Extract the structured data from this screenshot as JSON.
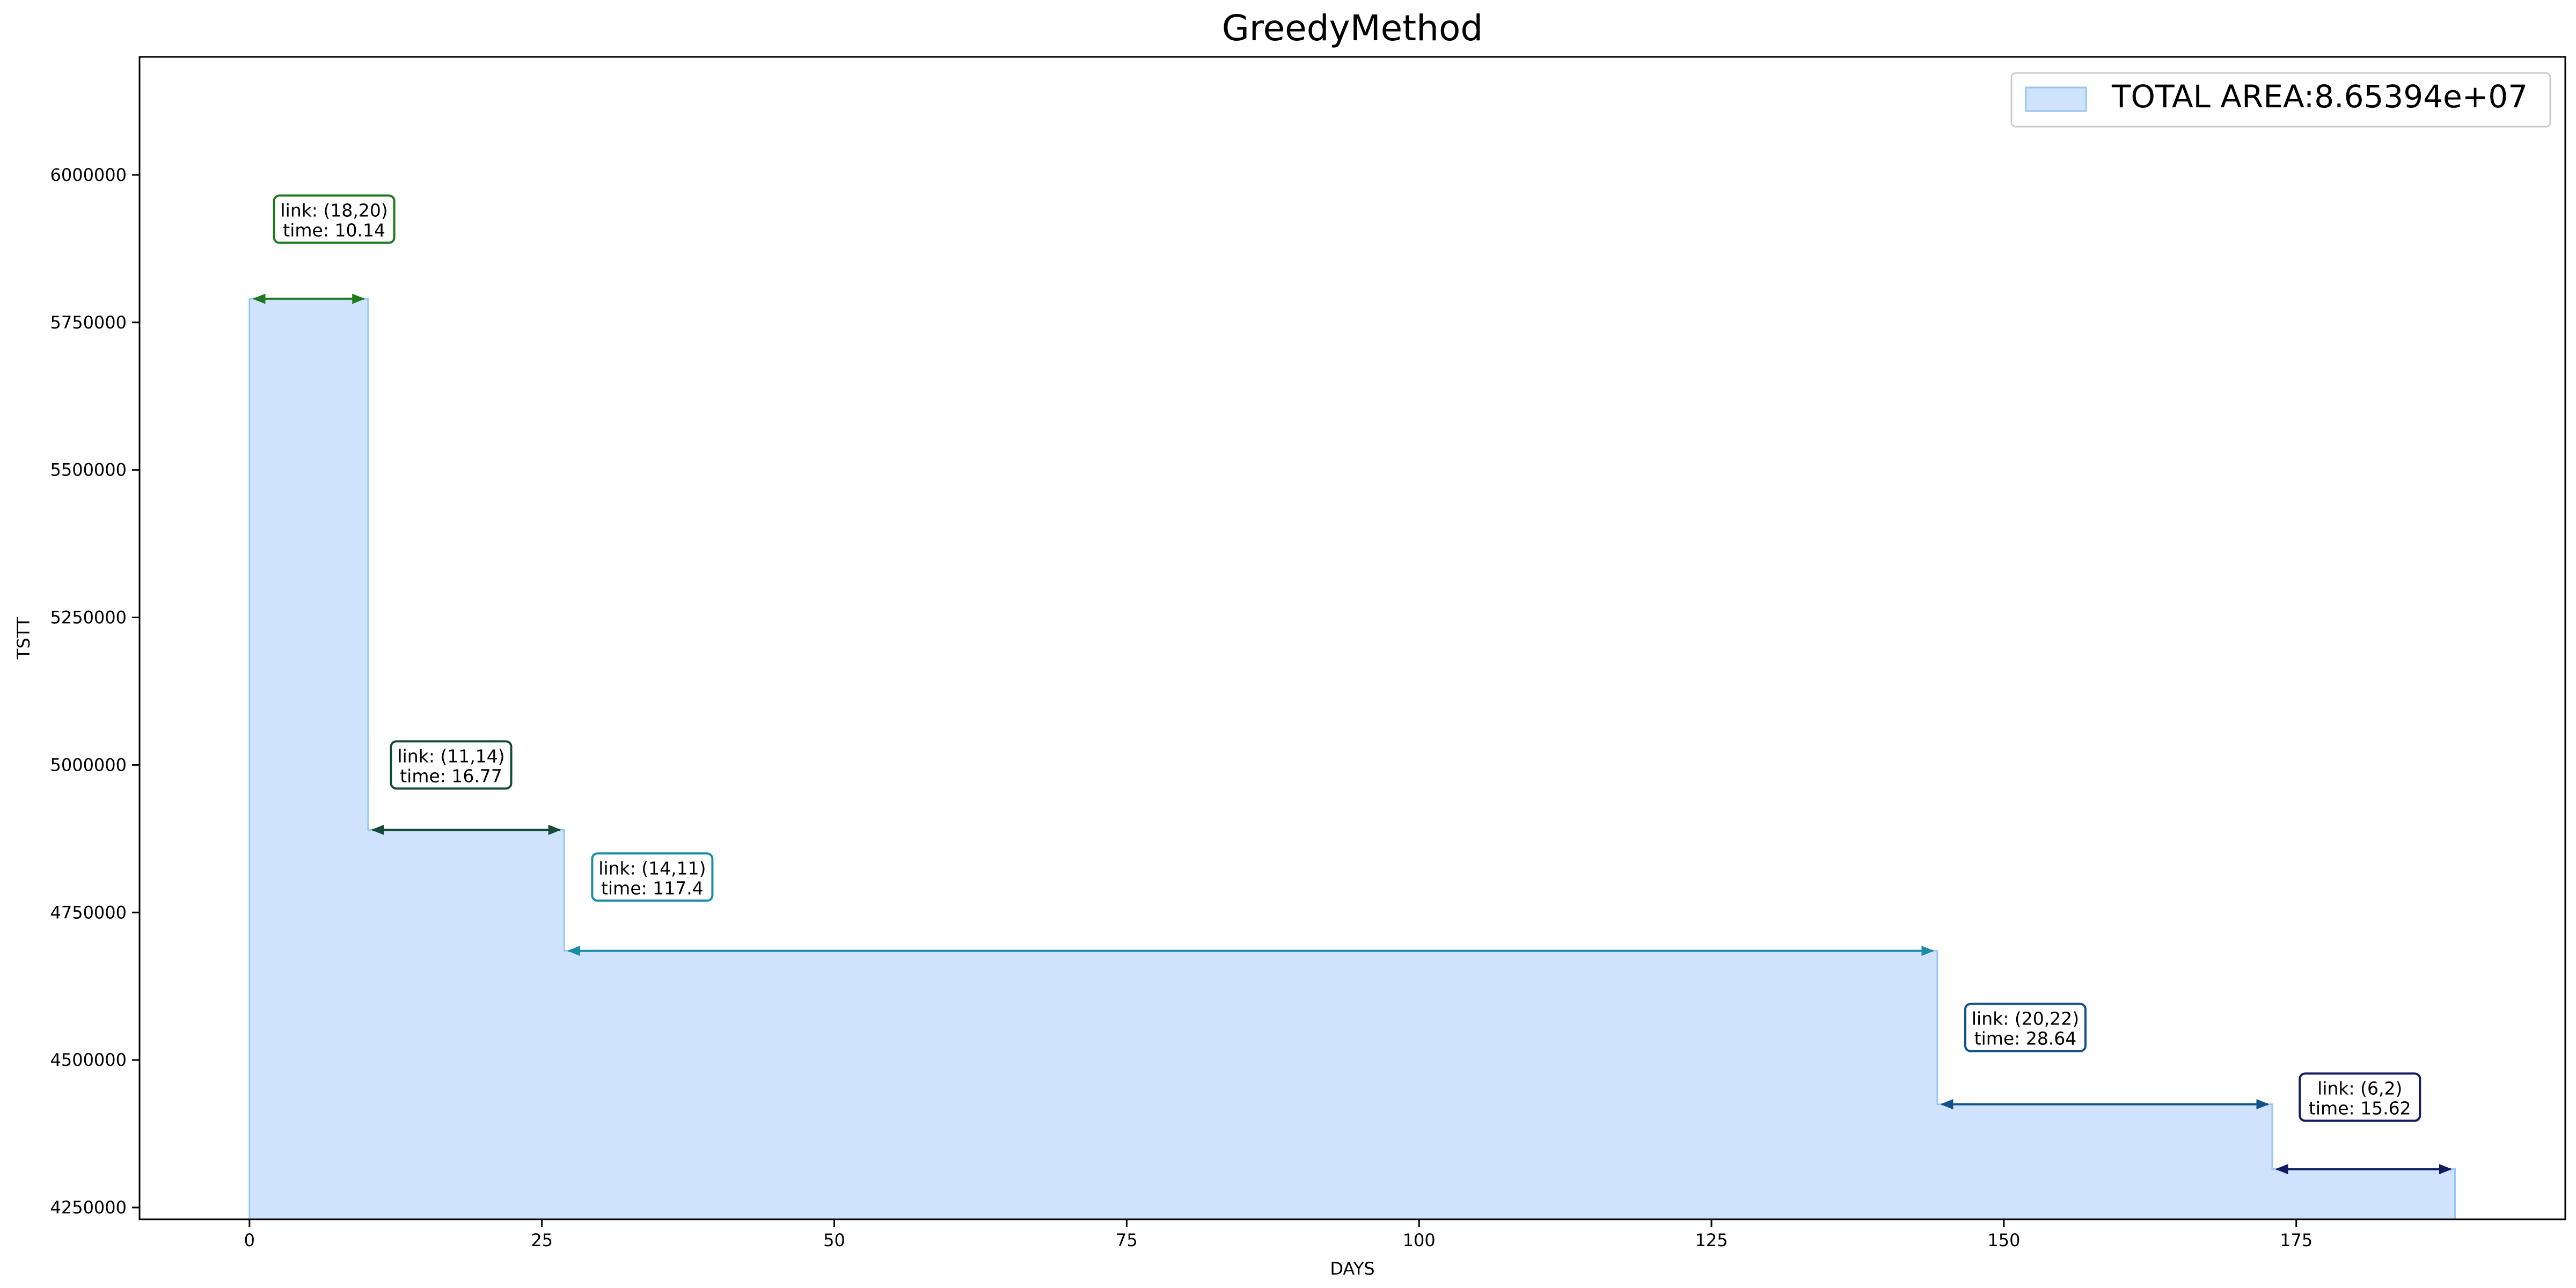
{
  "chart_data": {
    "type": "area",
    "title": "GreedyMethod",
    "xlabel": "DAYS",
    "ylabel": "TSTT",
    "xlim": [
      -9.4,
      198.0
    ],
    "ylim": [
      4230000,
      6200000
    ],
    "x_ticks": [
      0,
      25,
      50,
      75,
      100,
      125,
      150,
      175
    ],
    "y_ticks": [
      4250000,
      4500000,
      4750000,
      5000000,
      5250000,
      5500000,
      5750000,
      6000000
    ],
    "grid": false,
    "legend": {
      "position": "top-right",
      "label": "TOTAL AREA:8.65394e+07"
    },
    "fill_color": "#cfe3fd",
    "edge_color": "#9ac6ee",
    "steps": [
      {
        "x_start": 0.0,
        "x_end": 10.14,
        "y": 5790000,
        "link": "link: (18,20)",
        "time": "time: 10.14",
        "color": "#1f7a1f"
      },
      {
        "x_start": 10.14,
        "x_end": 26.91,
        "y": 4890000,
        "link": "link: (11,14)",
        "time": "time: 16.77",
        "color": "#134a3a"
      },
      {
        "x_start": 26.91,
        "x_end": 144.31,
        "y": 4685000,
        "link": "link: (14,11)",
        "time": "time: 117.4",
        "color": "#1a8ca8"
      },
      {
        "x_start": 144.31,
        "x_end": 172.95,
        "y": 4425000,
        "link": "link: (20,22)",
        "time": "time: 28.64",
        "color": "#14508a"
      },
      {
        "x_start": 172.95,
        "x_end": 188.57,
        "y": 4315000,
        "link": "link: (6,2)",
        "time": "time: 15.62",
        "color": "#101c5e"
      }
    ],
    "annotations": [
      {
        "x": 2.1,
        "y": 5925000
      },
      {
        "x": 12.1,
        "y": 5000000
      },
      {
        "x": 29.3,
        "y": 4810000
      },
      {
        "x": 146.7,
        "y": 4555000
      },
      {
        "x": 175.3,
        "y": 4437000
      }
    ]
  }
}
